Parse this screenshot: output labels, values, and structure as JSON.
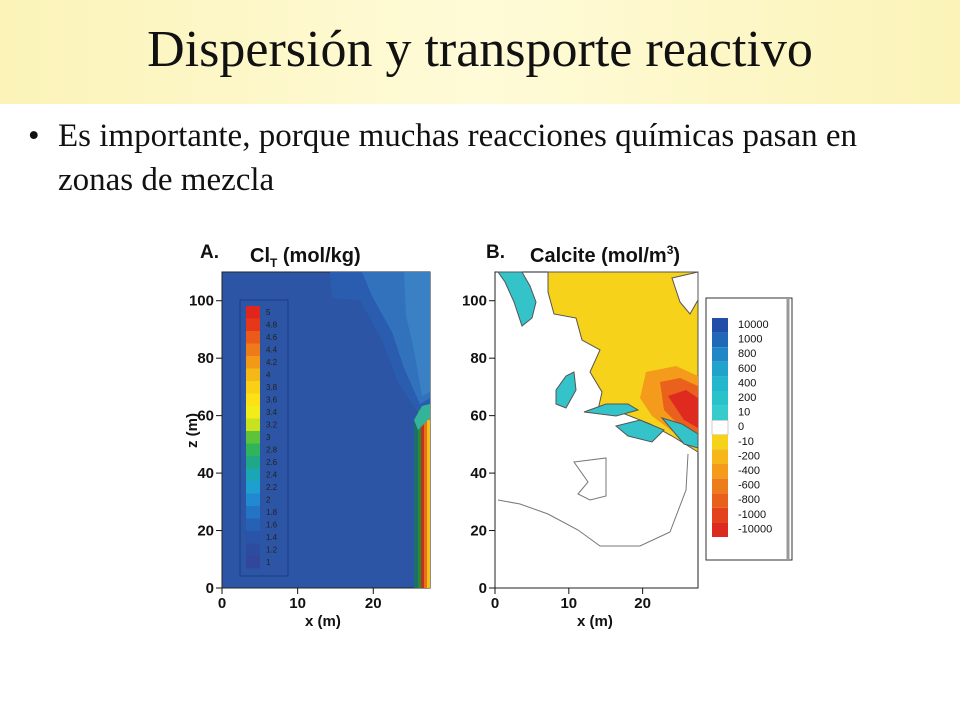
{
  "slide": {
    "title": "Dispersión y transporte reactivo",
    "bullet": "Es importante, porque muchas reacciones químicas pasan en zonas de mezcla",
    "bullet_marker": "•"
  },
  "panel_a": {
    "letter": "A.",
    "title_main": "Cl",
    "title_sub": "T",
    "title_rest": " (mol/kg)",
    "xlabel": "x (m)",
    "ylabel": "z (m)",
    "xticks": [
      "0",
      "10",
      "20"
    ],
    "yticks": [
      "0",
      "20",
      "40",
      "60",
      "80",
      "100"
    ],
    "legend_values": [
      "5",
      "4.8",
      "4.6",
      "4.4",
      "4.2",
      "4",
      "3.8",
      "3.6",
      "3.4",
      "3.2",
      "3",
      "2.8",
      "2.6",
      "2.4",
      "2.2",
      "2",
      "1.8",
      "1.6",
      "1.4",
      "1.2",
      "1"
    ],
    "legend_colors": [
      "#e0251c",
      "#e5381b",
      "#ea5a1a",
      "#ee7a19",
      "#f29a18",
      "#f6b817",
      "#f9d016",
      "#fbe116",
      "#f2ec1a",
      "#c8e21f",
      "#5cc33a",
      "#2fb45c",
      "#1fa888",
      "#1aa6b4",
      "#1e9fd0",
      "#2288d2",
      "#2474c6",
      "#2661b5",
      "#2a54a8",
      "#2d4c9f",
      "#30479a"
    ]
  },
  "panel_b": {
    "letter": "B.",
    "title_main": "Calcite (mol/m",
    "title_sup": "3",
    "title_rest": ")",
    "xlabel": "x (m)",
    "yticks": [
      "0",
      "20",
      "40",
      "60",
      "80",
      "100"
    ],
    "xticks": [
      "0",
      "10",
      "20"
    ],
    "legend_values": [
      "10000",
      "1000",
      "800",
      "600",
      "400",
      "200",
      "10",
      "0",
      "-10",
      "-200",
      "-400",
      "-600",
      "-800",
      "-1000",
      "-10000"
    ],
    "legend_colors": [
      "#1f4fa6",
      "#2068b8",
      "#1f86c8",
      "#1fa3cc",
      "#22b7cc",
      "#28c3c8",
      "#36cccc",
      "#ffffff",
      "#f7d21a",
      "#f6b71a",
      "#f49b1b",
      "#ee7c1c",
      "#e9601d",
      "#e4421e",
      "#dd2a1f"
    ]
  },
  "colors": {
    "plot_blue": "#2d55a6",
    "yellow": "#f6d31a",
    "cyan": "#34c3c8",
    "red": "#de2a1f"
  }
}
